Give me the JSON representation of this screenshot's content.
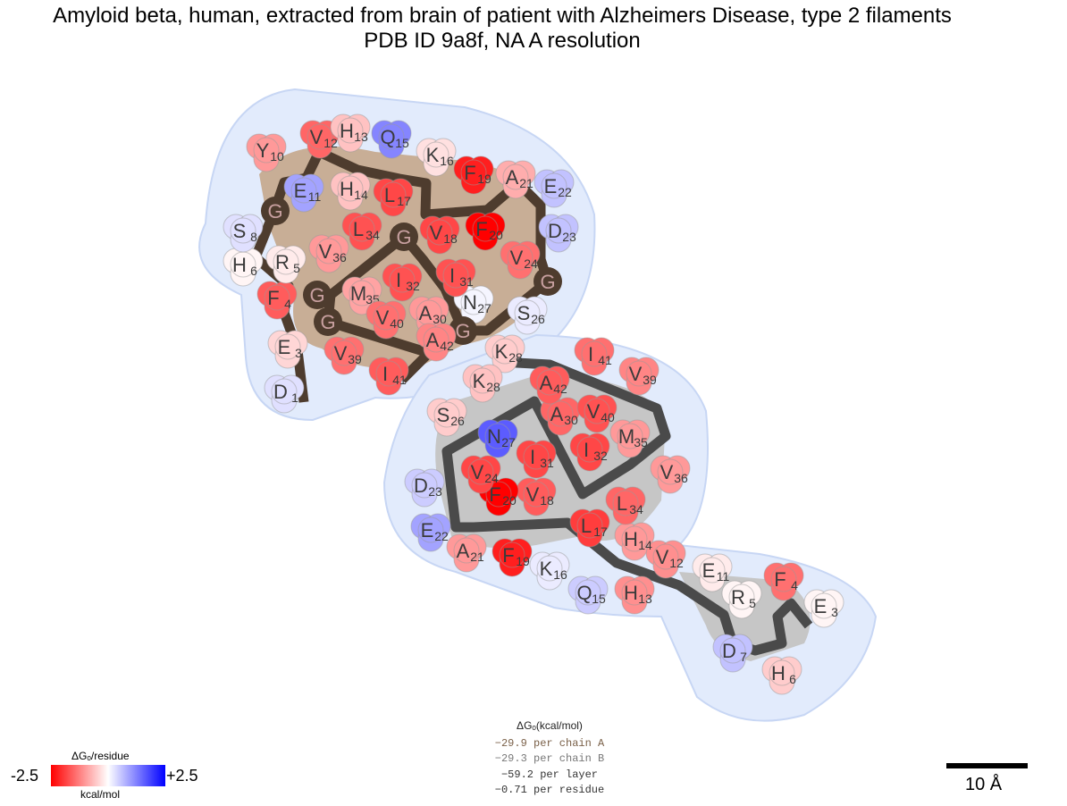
{
  "title": {
    "line1": "Amyloid beta, human, extracted from brain of patient with Alzheimers Disease, type 2 filaments",
    "line2": "PDB ID 9a8f, NA A resolution"
  },
  "chains": [
    {
      "id": "A",
      "residues": [
        {
          "aa": "D",
          "num": "1",
          "dg": 0.3
        },
        {
          "aa": "E",
          "num": "3",
          "dg": -0.4
        },
        {
          "aa": "F",
          "num": "4",
          "dg": -1.6
        },
        {
          "aa": "R",
          "num": "5",
          "dg": -0.2
        },
        {
          "aa": "H",
          "num": "6",
          "dg": -0.1
        },
        {
          "aa": "S",
          "num": "8",
          "dg": 0.3
        },
        {
          "aa": "G",
          "num": "9",
          "dg": 0
        },
        {
          "aa": "Y",
          "num": "10",
          "dg": -1.0
        },
        {
          "aa": "E",
          "num": "11",
          "dg": 0.9
        },
        {
          "aa": "V",
          "num": "12",
          "dg": -1.5
        },
        {
          "aa": "H",
          "num": "13",
          "dg": -0.6
        },
        {
          "aa": "H",
          "num": "14",
          "dg": -0.6
        },
        {
          "aa": "Q",
          "num": "15",
          "dg": 1.2
        },
        {
          "aa": "K",
          "num": "16",
          "dg": -0.3
        },
        {
          "aa": "L",
          "num": "17",
          "dg": -1.8
        },
        {
          "aa": "V",
          "num": "18",
          "dg": -1.8
        },
        {
          "aa": "F",
          "num": "19",
          "dg": -2.2
        },
        {
          "aa": "F",
          "num": "20",
          "dg": -2.5
        },
        {
          "aa": "A",
          "num": "21",
          "dg": -0.8
        },
        {
          "aa": "E",
          "num": "22",
          "dg": 0.6
        },
        {
          "aa": "D",
          "num": "23",
          "dg": 0.6
        },
        {
          "aa": "V",
          "num": "24",
          "dg": -1.4
        },
        {
          "aa": "G",
          "num": "25",
          "dg": 0
        },
        {
          "aa": "S",
          "num": "26",
          "dg": 0.2
        },
        {
          "aa": "N",
          "num": "27",
          "dg": 0.1
        },
        {
          "aa": "K",
          "num": "28",
          "dg": -0.5
        },
        {
          "aa": "G",
          "num": "29",
          "dg": 0
        },
        {
          "aa": "A",
          "num": "30",
          "dg": -1.0
        },
        {
          "aa": "I",
          "num": "31",
          "dg": -1.7
        },
        {
          "aa": "I",
          "num": "32",
          "dg": -1.7
        },
        {
          "aa": "G",
          "num": "33",
          "dg": 0
        },
        {
          "aa": "L",
          "num": "34",
          "dg": -1.7
        },
        {
          "aa": "M",
          "num": "35",
          "dg": -0.9
        },
        {
          "aa": "V",
          "num": "36",
          "dg": -1.0
        },
        {
          "aa": "G",
          "num": "37",
          "dg": 0
        },
        {
          "aa": "G",
          "num": "38",
          "dg": 0
        },
        {
          "aa": "V",
          "num": "39",
          "dg": -1.4
        },
        {
          "aa": "V",
          "num": "40",
          "dg": -1.4
        },
        {
          "aa": "I",
          "num": "41",
          "dg": -1.6
        },
        {
          "aa": "A",
          "num": "42",
          "dg": -1.2
        }
      ]
    },
    {
      "id": "B",
      "residues": [
        {
          "aa": "E",
          "num": "3",
          "dg": -0.1
        },
        {
          "aa": "F",
          "num": "4",
          "dg": -1.4
        },
        {
          "aa": "R",
          "num": "5",
          "dg": -0.1
        },
        {
          "aa": "H",
          "num": "6",
          "dg": -0.5
        },
        {
          "aa": "D",
          "num": "7",
          "dg": 0.6
        },
        {
          "aa": "E",
          "num": "11",
          "dg": -0.2
        },
        {
          "aa": "V",
          "num": "12",
          "dg": -1.1
        },
        {
          "aa": "H",
          "num": "13",
          "dg": -1.1
        },
        {
          "aa": "H",
          "num": "14",
          "dg": -1.0
        },
        {
          "aa": "Q",
          "num": "15",
          "dg": 0.5
        },
        {
          "aa": "K",
          "num": "16",
          "dg": 0.2
        },
        {
          "aa": "L",
          "num": "17",
          "dg": -1.9
        },
        {
          "aa": "V",
          "num": "18",
          "dg": -1.6
        },
        {
          "aa": "F",
          "num": "19",
          "dg": -2.2
        },
        {
          "aa": "F",
          "num": "20",
          "dg": -2.5
        },
        {
          "aa": "A",
          "num": "21",
          "dg": -1.0
        },
        {
          "aa": "E",
          "num": "22",
          "dg": 0.9
        },
        {
          "aa": "D",
          "num": "23",
          "dg": 0.5
        },
        {
          "aa": "V",
          "num": "24",
          "dg": -1.8
        },
        {
          "aa": "S",
          "num": "26",
          "dg": -0.5
        },
        {
          "aa": "N",
          "num": "27",
          "dg": 1.6
        },
        {
          "aa": "K",
          "num": "28",
          "dg": -0.6
        },
        {
          "aa": "A",
          "num": "30",
          "dg": -1.5
        },
        {
          "aa": "I",
          "num": "31",
          "dg": -1.8
        },
        {
          "aa": "I",
          "num": "32",
          "dg": -1.8
        },
        {
          "aa": "L",
          "num": "34",
          "dg": -1.5
        },
        {
          "aa": "M",
          "num": "35",
          "dg": -1.0
        },
        {
          "aa": "V",
          "num": "36",
          "dg": -1.0
        },
        {
          "aa": "V",
          "num": "39",
          "dg": -1.2
        },
        {
          "aa": "V",
          "num": "40",
          "dg": -1.7
        },
        {
          "aa": "I",
          "num": "41",
          "dg": -1.4
        },
        {
          "aa": "A",
          "num": "42",
          "dg": -1.6
        }
      ]
    }
  ],
  "legend": {
    "title": "ΔGₒ/residue",
    "min": "-2.5",
    "max": "+2.5",
    "unit": "kcal/mol",
    "colors": {
      "negative": "#ff0000",
      "neutral": "#ffffff",
      "positive": "#0000ff"
    }
  },
  "energy": {
    "title": "ΔGₒ(kcal/mol)",
    "per_chain_a": "−29.9 per chain A",
    "per_chain_b": "−29.3 per chain B",
    "per_layer": "−59.2 per layer",
    "per_residue": "−0.71 per residue"
  },
  "scalebar": {
    "label": "10 Å"
  },
  "colors": {
    "chain_a_backbone": "#4e3c2e",
    "chain_b_backbone": "#4a4a4a",
    "chain_a_fill": "#c8ae96",
    "chain_b_fill": "#c4c4c4",
    "halo": "#dbe6fb",
    "glycine": "#4e3c2e"
  }
}
